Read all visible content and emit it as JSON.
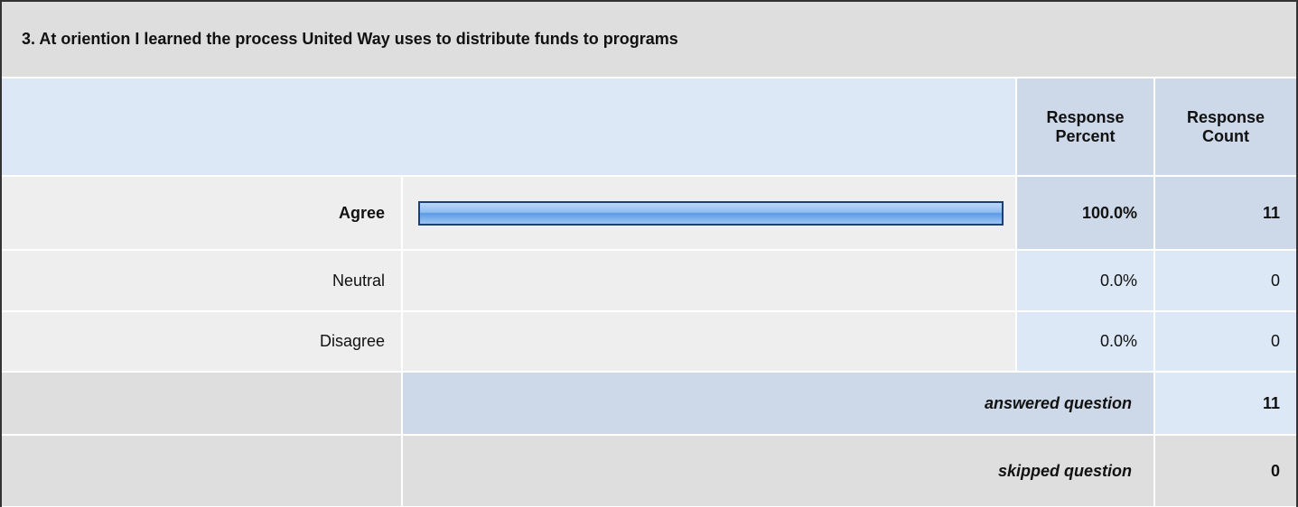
{
  "question": "3. At oriention I learned the process United Way uses to distribute funds to programs",
  "headers": [
    "Response Percent",
    "Response Count"
  ],
  "rows": [
    {
      "label": "Agree",
      "percent": 100.0,
      "percent_label": "100.0%",
      "count": 11
    },
    {
      "label": "Neutral",
      "percent": 0.0,
      "percent_label": "0.0%",
      "count": 0
    },
    {
      "label": "Disagree",
      "percent": 0.0,
      "percent_label": "0.0%",
      "count": 0
    }
  ],
  "answered": {
    "label": "answered question",
    "count": 11
  },
  "skipped": {
    "label": "skipped question",
    "count": 0
  }
}
